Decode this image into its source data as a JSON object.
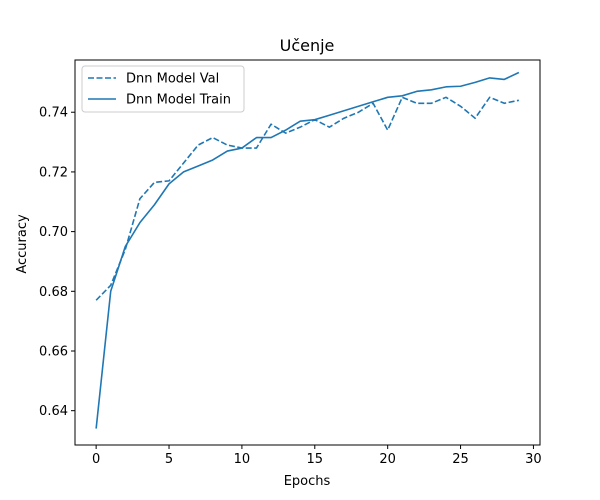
{
  "chart_data": {
    "type": "line",
    "title": "Učenje",
    "xlabel": "Epochs",
    "ylabel": "Accuracy",
    "xlim": [
      -1.45,
      30.45
    ],
    "ylim": [
      0.6285,
      0.7575
    ],
    "xticks": [
      0,
      5,
      10,
      15,
      20,
      25,
      30
    ],
    "yticks": [
      0.64,
      0.66,
      0.68,
      0.7,
      0.72,
      0.74
    ],
    "ytick_labels": [
      "0.64",
      "0.66",
      "0.68",
      "0.70",
      "0.72",
      "0.74"
    ],
    "legend_position": "top-left",
    "grid": false,
    "x": [
      0,
      1,
      2,
      3,
      4,
      5,
      6,
      7,
      8,
      9,
      10,
      11,
      12,
      13,
      14,
      15,
      16,
      17,
      18,
      19,
      20,
      21,
      22,
      23,
      24,
      25,
      26,
      27,
      28,
      29
    ],
    "series": [
      {
        "name": "Dnn Model Val",
        "style": "dashed",
        "color": "#1f77b4",
        "values": [
          0.677,
          0.682,
          0.694,
          0.711,
          0.7165,
          0.717,
          0.723,
          0.729,
          0.7315,
          0.729,
          0.728,
          0.728,
          0.736,
          0.733,
          0.735,
          0.7375,
          0.735,
          0.738,
          0.74,
          0.743,
          0.734,
          0.745,
          0.743,
          0.743,
          0.745,
          0.742,
          0.738,
          0.745,
          0.743,
          0.744
        ]
      },
      {
        "name": "Dnn Model Train",
        "style": "solid",
        "color": "#1f77b4",
        "values": [
          0.634,
          0.68,
          0.695,
          0.703,
          0.709,
          0.716,
          0.72,
          0.722,
          0.724,
          0.727,
          0.728,
          0.7315,
          0.7315,
          0.734,
          0.737,
          0.7375,
          0.739,
          0.7405,
          0.742,
          0.7435,
          0.745,
          0.7455,
          0.747,
          0.7475,
          0.7485,
          0.7487,
          0.75,
          0.7515,
          0.751,
          0.7533
        ]
      }
    ]
  }
}
